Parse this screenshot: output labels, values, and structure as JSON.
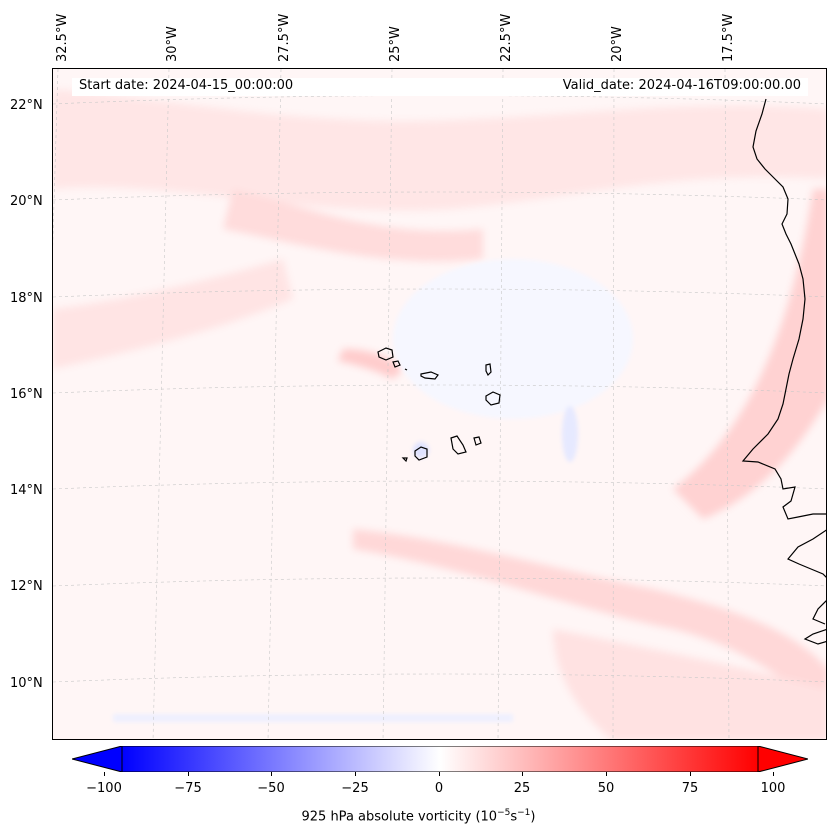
{
  "header": {
    "start_date": "Start date: 2024-04-15_00:00:00",
    "valid_date": "Valid_date: 2024-04-16T09:00:00.00"
  },
  "map": {
    "longitude_labels": [
      "32.5°W",
      "30°W",
      "27.5°W",
      "25°W",
      "22.5°W",
      "20°W",
      "17.5°W"
    ],
    "latitude_labels": [
      "22°N",
      "20°N",
      "18°N",
      "16°N",
      "14°N",
      "12°N",
      "10°N"
    ],
    "features": [
      "cape-verde-islands",
      "west-africa-coastline"
    ]
  },
  "colorbar": {
    "min": -100,
    "max": 100,
    "ticks": [
      "−100",
      "−75",
      "−50",
      "−25",
      "0",
      "25",
      "50",
      "75",
      "100"
    ],
    "label_prefix": "925 hPa absolute vorticity (10",
    "label_exp1": "−5",
    "label_mid": "s",
    "label_exp2": "−1",
    "label_suffix": ")",
    "low_color": "#0000ff",
    "high_color": "#ff0000"
  }
}
